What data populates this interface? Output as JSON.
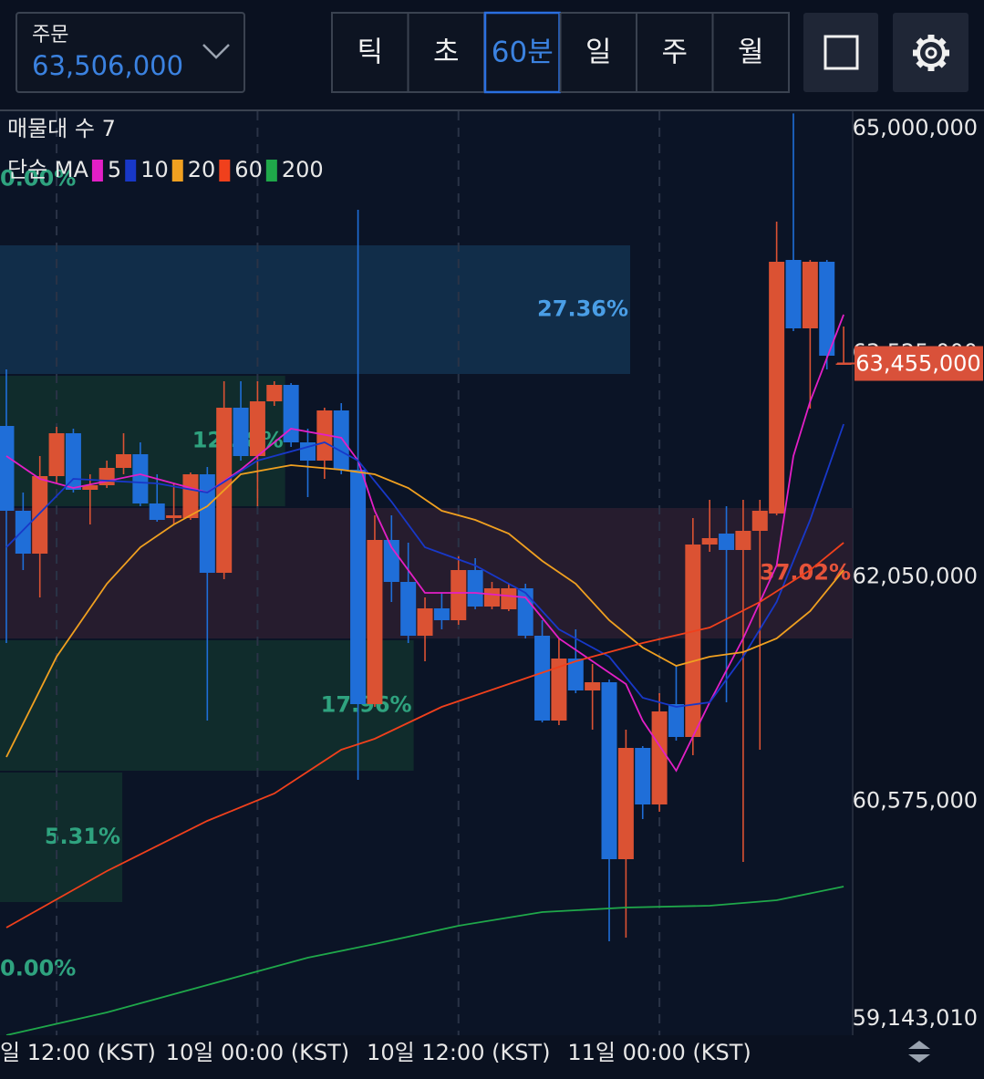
{
  "header": {
    "order_label": "주문",
    "order_price": "63,506,000",
    "tabs": [
      "틱",
      "초",
      "60분",
      "일",
      "주",
      "월"
    ],
    "selected_tab": 2
  },
  "chart_data": {
    "type": "candlestick",
    "up_color": "#db5233",
    "down_color": "#1f6ed8",
    "open": [
      63044000,
      62486000,
      62204000,
      62714000,
      62996000,
      62624000,
      62654000,
      62768000,
      62858000,
      62534000,
      62438000,
      62438000,
      62726000,
      62078000,
      63164000,
      62846000,
      63206000,
      63314000,
      62936000,
      62816000,
      63146000,
      62756000,
      61214000,
      62294000,
      62018000,
      61664000,
      61844000,
      61766000,
      62096000,
      61856000,
      61838000,
      61976000,
      61664000,
      61106000,
      61514000,
      61304000,
      61358000,
      60194000,
      60926000,
      60554000,
      61214000,
      60998000,
      62264000,
      62336000,
      62228000,
      62354000,
      62468000,
      64136000,
      63686000,
      64124000,
      63455000
    ],
    "high": [
      63416000,
      62606000,
      62846000,
      63038000,
      63026000,
      62726000,
      62816000,
      62996000,
      62936000,
      62726000,
      62666000,
      62738000,
      62774000,
      63338000,
      63338000,
      63338000,
      63338000,
      63326000,
      63026000,
      63164000,
      63194000,
      64466000,
      62456000,
      62456000,
      62276000,
      61916000,
      61946000,
      62186000,
      62174000,
      62018000,
      62006000,
      62006000,
      61766000,
      61646000,
      61706000,
      61478000,
      61376000,
      61046000,
      60938000,
      61286000,
      61466000,
      62438000,
      62558000,
      62516000,
      62558000,
      62558000,
      64388000,
      65100000,
      64136000,
      64136000,
      63698000
    ],
    "low": [
      61616000,
      62096000,
      61916000,
      62666000,
      62606000,
      62396000,
      62636000,
      62726000,
      62516000,
      62414000,
      62396000,
      62426000,
      61106000,
      62036000,
      62816000,
      62516000,
      63176000,
      62906000,
      62576000,
      62696000,
      62726000,
      60716000,
      61196000,
      61886000,
      61616000,
      61496000,
      61706000,
      61736000,
      61838000,
      61838000,
      61826000,
      61646000,
      61094000,
      61076000,
      61286000,
      61046000,
      59654000,
      59678000,
      60458000,
      60506000,
      60974000,
      60878000,
      62216000,
      61226000,
      60176000,
      60914000,
      62456000,
      63668000,
      63158000,
      63416000,
      63446000
    ],
    "close": [
      62486000,
      62204000,
      62714000,
      62996000,
      62624000,
      62654000,
      62768000,
      62858000,
      62534000,
      62426000,
      62456000,
      62726000,
      62078000,
      63164000,
      62846000,
      63206000,
      63314000,
      62936000,
      62816000,
      63146000,
      62756000,
      61214000,
      62294000,
      62018000,
      61664000,
      61844000,
      61766000,
      62096000,
      61856000,
      61976000,
      61976000,
      61664000,
      61106000,
      61514000,
      61304000,
      61358000,
      60194000,
      60926000,
      60554000,
      61166000,
      60998000,
      62264000,
      62306000,
      62228000,
      62354000,
      62486000,
      64124000,
      63686000,
      64124000,
      63506000,
      63455000
    ],
    "xlim": [
      -0.38,
      50.54
    ],
    "xticks": [
      {
        "value": 3,
        "label": "일 12:00 (KST)"
      },
      {
        "value": 15,
        "label": "10일 00:00 (KST)"
      },
      {
        "value": 27,
        "label": "10일 12:00 (KST)"
      },
      {
        "value": 39,
        "label": "11일 00:00 (KST)"
      }
    ],
    "ylim": [
      59036000,
      65114000
    ],
    "yticks": [
      {
        "value": 65000000,
        "label": "65,000,000"
      },
      {
        "value": 63525000,
        "label": "63,525,000"
      },
      {
        "value": 62050000,
        "label": "62,050,000"
      },
      {
        "value": 60575000,
        "label": "60,575,000"
      },
      {
        "value": 59143010,
        "label": "59,143,010"
      }
    ],
    "current_price": {
      "value": 63455000,
      "label": "63,455,000",
      "color": "#d9513a"
    },
    "moving_averages": {
      "label": "단순 MA",
      "series": [
        {
          "name": "5",
          "color": "#e31fc6",
          "x": [
            0,
            2,
            4,
            8,
            12,
            14,
            17,
            20,
            21,
            22,
            23,
            25,
            28,
            31,
            33,
            35,
            37,
            38,
            40,
            42,
            44,
            46,
            47,
            48,
            50
          ],
          "values": [
            62846000,
            62696000,
            62636000,
            62726000,
            62606000,
            62756000,
            63026000,
            62966000,
            62816000,
            62486000,
            62246000,
            61946000,
            61946000,
            61916000,
            61646000,
            61496000,
            61346000,
            61106000,
            60776000,
            61226000,
            61646000,
            62126000,
            62846000,
            63206000,
            63776000
          ]
        },
        {
          "name": "10",
          "color": "#1838c8",
          "x": [
            0,
            4,
            9,
            12,
            15,
            19,
            21,
            23,
            25,
            28,
            31,
            33,
            36,
            38,
            40,
            42,
            44,
            46,
            48,
            50
          ],
          "values": [
            62246000,
            62696000,
            62666000,
            62606000,
            62816000,
            62936000,
            62816000,
            62546000,
            62246000,
            62126000,
            61946000,
            61706000,
            61526000,
            61256000,
            61196000,
            61226000,
            61526000,
            61886000,
            62426000,
            63056000
          ]
        },
        {
          "name": "20",
          "color": "#f0a020",
          "x": [
            0,
            3,
            6,
            8,
            10,
            12,
            14,
            17,
            20,
            22,
            24,
            26,
            28,
            30,
            32,
            34,
            36,
            38,
            40,
            42,
            44,
            46,
            48,
            50
          ],
          "values": [
            60866000,
            61526000,
            62006000,
            62246000,
            62396000,
            62516000,
            62726000,
            62786000,
            62756000,
            62726000,
            62636000,
            62486000,
            62426000,
            62336000,
            62156000,
            62006000,
            61766000,
            61586000,
            61466000,
            61526000,
            61556000,
            61646000,
            61826000,
            62096000
          ]
        },
        {
          "name": "60",
          "color": "#f0401c",
          "x": [
            0,
            6,
            12,
            16,
            20,
            22,
            26,
            30,
            34,
            38,
            42,
            45,
            48,
            50
          ],
          "values": [
            59744000,
            60116000,
            60446000,
            60626000,
            60914000,
            60986000,
            61196000,
            61346000,
            61496000,
            61616000,
            61718000,
            61886000,
            62096000,
            62276000
          ]
        },
        {
          "name": "200",
          "color": "#1fa84a",
          "x": [
            0,
            6,
            12,
            18,
            22,
            27,
            32,
            37,
            42,
            46,
            50
          ],
          "values": [
            59036000,
            59186000,
            59366000,
            59546000,
            59636000,
            59756000,
            59846000,
            59876000,
            59888000,
            59924000,
            60014000
          ]
        }
      ]
    },
    "volume_profile": {
      "title": "매물대 수 7",
      "highs": [
        65096000,
        64238000,
        63380000,
        62510000,
        61640000,
        60770000,
        59906000
      ],
      "lows": [
        64238000,
        63380000,
        62510000,
        61640000,
        60770000,
        59906000,
        59036000
      ],
      "values": [
        0,
        27.36,
        12.38,
        37.02,
        17.96,
        5.31,
        0
      ],
      "value_labels": [
        "0.00%",
        "27.36%",
        "12.38%",
        "37.02%",
        "17.96%",
        "5.31%",
        "0.00%"
      ],
      "colors": [
        "#12302e",
        "#133150",
        "#12302e",
        "#2c1d30",
        "#12302e",
        "#12302e",
        "#12302e"
      ],
      "label_colors": [
        "#2fa37f",
        "#4a9ee6",
        "#2fa37f",
        "#e5533a",
        "#2fa37f",
        "#2fa37f",
        "#2fa37f"
      ]
    }
  }
}
